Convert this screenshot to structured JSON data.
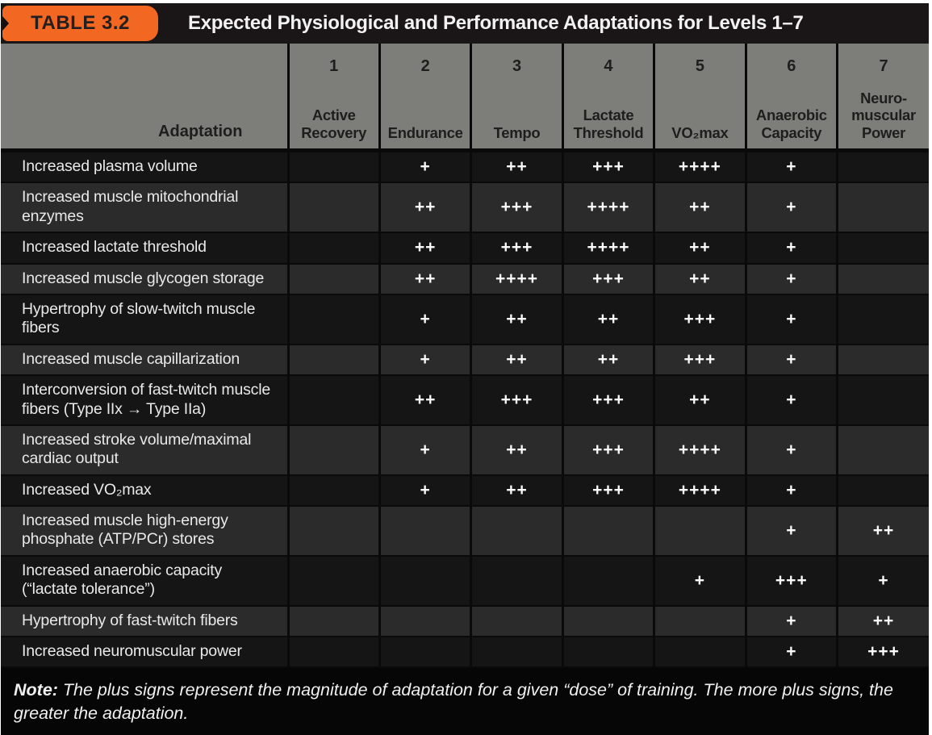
{
  "title_bar": {
    "tab_label": "TABLE 3.2",
    "title": "Expected Physiological and Performance Adaptations for Levels 1–7"
  },
  "columns": {
    "adaptation_header": "Adaptation",
    "levels": [
      {
        "number": "1",
        "name": "Active\nRecovery"
      },
      {
        "number": "2",
        "name": "Endurance"
      },
      {
        "number": "3",
        "name": "Tempo"
      },
      {
        "number": "4",
        "name": "Lactate\nThreshold"
      },
      {
        "number": "5",
        "name": "VO₂max"
      },
      {
        "number": "6",
        "name": "Anaerobic\nCapacity"
      },
      {
        "number": "7",
        "name": "Neuro-\nmuscular\nPower"
      }
    ]
  },
  "rows": [
    {
      "adaptation": "Increased plasma volume",
      "values": [
        "",
        "+",
        "++",
        "+++",
        "++++",
        "+",
        ""
      ]
    },
    {
      "adaptation": "Increased muscle mitochondrial enzymes",
      "values": [
        "",
        "++",
        "+++",
        "++++",
        "++",
        "+",
        ""
      ]
    },
    {
      "adaptation": "Increased lactate threshold",
      "values": [
        "",
        "++",
        "+++",
        "++++",
        "++",
        "+",
        ""
      ]
    },
    {
      "adaptation": "Increased muscle glycogen storage",
      "values": [
        "",
        "++",
        "++++",
        "+++",
        "++",
        "+",
        ""
      ]
    },
    {
      "adaptation": "Hypertrophy of slow-twitch muscle fibers",
      "values": [
        "",
        "+",
        "++",
        "++",
        "+++",
        "+",
        ""
      ]
    },
    {
      "adaptation": "Increased muscle capillarization",
      "values": [
        "",
        "+",
        "++",
        "++",
        "+++",
        "+",
        ""
      ]
    },
    {
      "adaptation": "Interconversion of fast-twitch muscle fibers (Type IIx → Type IIa)",
      "values": [
        "",
        "++",
        "+++",
        "+++",
        "++",
        "+",
        ""
      ]
    },
    {
      "adaptation": "Increased stroke volume/maximal cardiac output",
      "values": [
        "",
        "+",
        "++",
        "+++",
        "++++",
        "+",
        ""
      ]
    },
    {
      "adaptation": "Increased VO₂max",
      "values": [
        "",
        "+",
        "++",
        "+++",
        "++++",
        "+",
        ""
      ]
    },
    {
      "adaptation": "Increased muscle high-energy phosphate (ATP/PCr) stores",
      "values": [
        "",
        "",
        "",
        "",
        "",
        "+",
        "++"
      ]
    },
    {
      "adaptation": "Increased anaerobic capacity (“lactate tolerance”)",
      "values": [
        "",
        "",
        "",
        "",
        "+",
        "+++",
        "+"
      ]
    },
    {
      "adaptation": "Hypertrophy of fast-twitch fibers",
      "values": [
        "",
        "",
        "",
        "",
        "",
        "+",
        "++"
      ]
    },
    {
      "adaptation": "Increased neuromuscular power",
      "values": [
        "",
        "",
        "",
        "",
        "",
        "+",
        "+++"
      ]
    }
  ],
  "note": {
    "label": "Note:",
    "text": " The plus signs represent the magnitude of adaptation for a given “dose” of training. The more plus signs, the greater the adaptation."
  },
  "colors": {
    "tab_orange": "#f26722",
    "header_gray": "#7d7d79",
    "row_dark": "#151515",
    "row_light": "#2b2b2b",
    "title_bar_black": "#1a1617",
    "body_text": "#e9e9e9"
  }
}
